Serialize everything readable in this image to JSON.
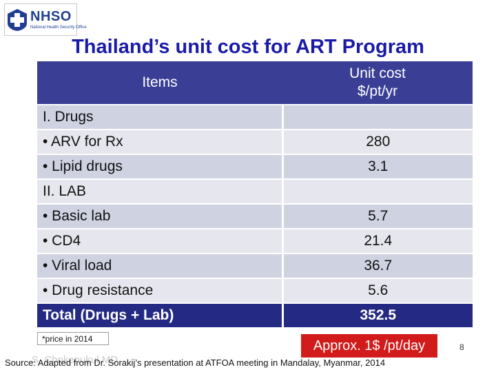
{
  "logo": {
    "text": "NHSO",
    "subtitle": "National Health Security Office",
    "color": "#1f3f93"
  },
  "title": "Thailand’s unit cost for ART Program",
  "table": {
    "headers": {
      "items": "Items",
      "unit_cost_line1": "Unit cost",
      "unit_cost_line2": "$/pt/yr"
    },
    "rows": [
      {
        "item": "I. Drugs",
        "cost": ""
      },
      {
        "item": "• ARV for Rx",
        "cost": "280"
      },
      {
        "item": "• Lipid drugs",
        "cost": "3.1"
      },
      {
        "item": "II. LAB",
        "cost": ""
      },
      {
        "item": "• Basic lab",
        "cost": "5.7"
      },
      {
        "item": "• CD4",
        "cost": "21.4"
      },
      {
        "item": "• Viral load",
        "cost": "36.7"
      },
      {
        "item": "• Drug resistance",
        "cost": "5.6"
      }
    ],
    "total": {
      "item": "Total  (Drugs + Lab)",
      "cost": "352.5"
    }
  },
  "note": "*price in 2014",
  "approx": "Approx. 1$ /pt/day",
  "page_number": "8",
  "watermark": "S. Chokenukul MD",
  "source": "Source: Adapted from Dr. Sorakij’s presentation at ATFOA meeting in Mandalay, Myanmar, 2014",
  "colors": {
    "header": "#3a3f95",
    "total": "#242a83",
    "title": "#1a1aa8",
    "approx": "#d21b1b"
  }
}
